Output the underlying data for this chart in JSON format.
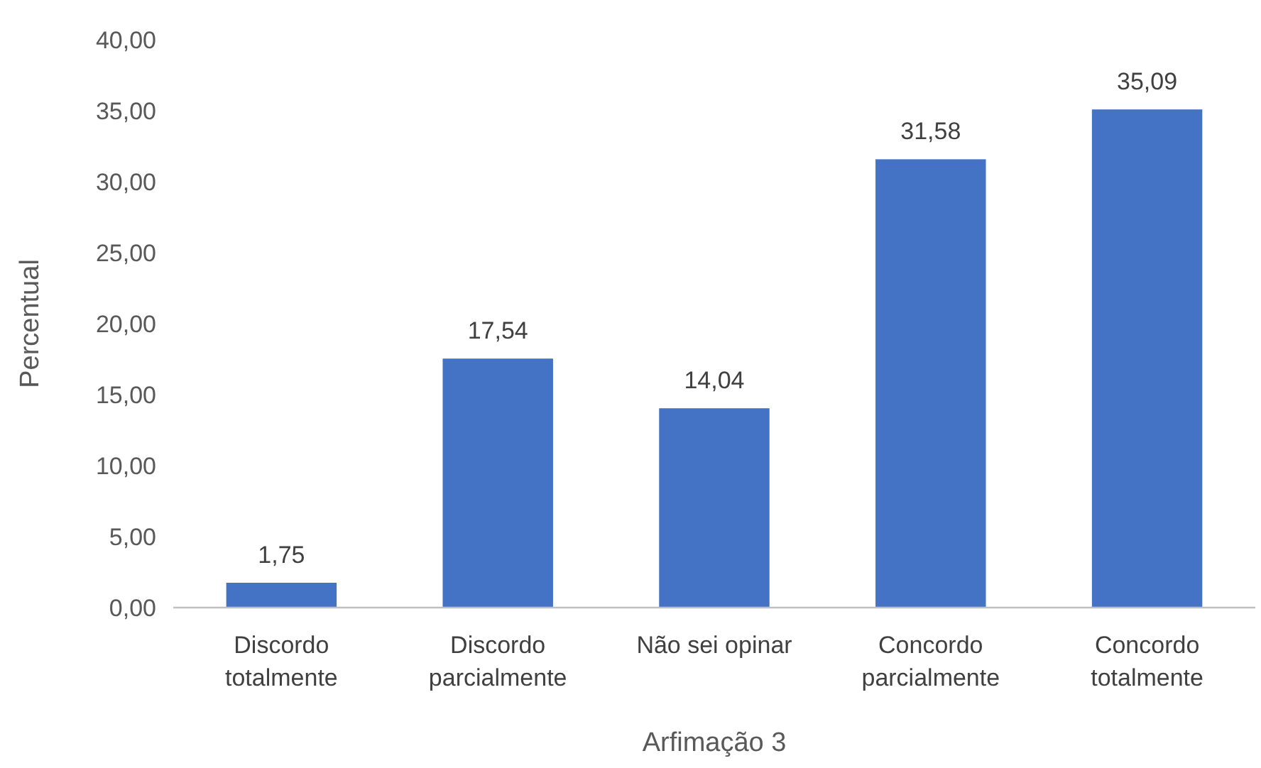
{
  "chart_data": {
    "type": "bar",
    "xlabel": "Arfimação 3",
    "ylabel": "Percentual",
    "categories": [
      "Discordo totalmente",
      "Discordo parcialmente",
      "Não sei opinar",
      "Concordo parcialmente",
      "Concordo totalmente"
    ],
    "values": [
      1.75,
      17.54,
      14.04,
      31.58,
      35.09
    ],
    "value_labels": [
      "1,75",
      "17,54",
      "14,04",
      "31,58",
      "35,09"
    ],
    "color": "#4472c4",
    "ylim": [
      0,
      40
    ],
    "yticks": [
      {
        "value": 0,
        "label": "0,00"
      },
      {
        "value": 5,
        "label": "5,00"
      },
      {
        "value": 10,
        "label": "10,00"
      },
      {
        "value": 15,
        "label": "15,00"
      },
      {
        "value": 20,
        "label": "20,00"
      },
      {
        "value": 25,
        "label": "25,00"
      },
      {
        "value": 30,
        "label": "30,00"
      },
      {
        "value": 35,
        "label": "35,00"
      },
      {
        "value": 40,
        "label": "40,00"
      }
    ],
    "grid": false
  }
}
